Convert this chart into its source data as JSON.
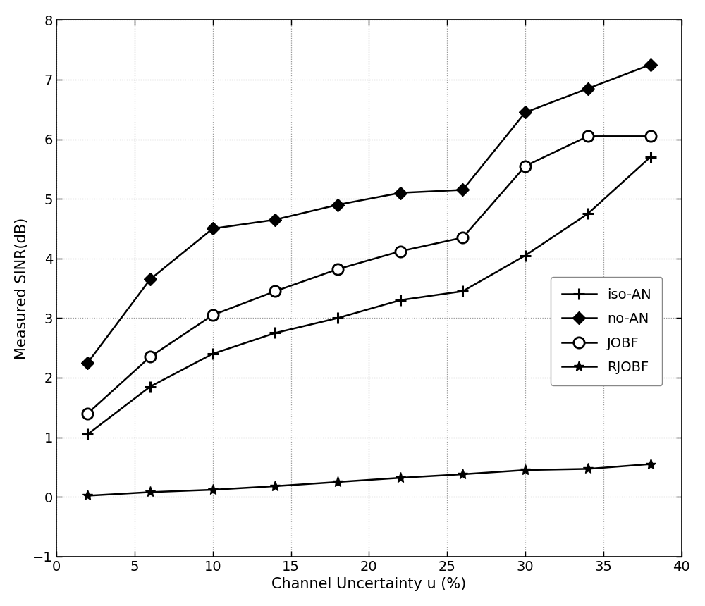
{
  "x": [
    2,
    6,
    10,
    14,
    18,
    22,
    26,
    30,
    34,
    38
  ],
  "iso_AN": [
    1.05,
    1.85,
    2.4,
    2.75,
    3.0,
    3.3,
    3.45,
    4.05,
    4.75,
    5.7
  ],
  "no_AN": [
    2.25,
    3.65,
    4.5,
    4.65,
    4.9,
    5.1,
    5.15,
    6.45,
    6.85,
    7.25
  ],
  "JOBF": [
    1.4,
    2.35,
    3.05,
    3.45,
    3.82,
    4.12,
    4.35,
    5.55,
    6.05,
    6.05
  ],
  "RJOBF": [
    0.02,
    0.08,
    0.12,
    0.18,
    0.25,
    0.32,
    0.38,
    0.45,
    0.47,
    0.55
  ],
  "xlabel": "Channel Uncertainty u (%)",
  "ylabel": "Measured SINR(dB)",
  "xlim": [
    0,
    40
  ],
  "ylim": [
    -1,
    8
  ],
  "xticks": [
    0,
    5,
    10,
    15,
    20,
    25,
    30,
    35,
    40
  ],
  "yticks": [
    -1,
    0,
    1,
    2,
    3,
    4,
    5,
    6,
    7,
    8
  ],
  "line_color": "#000000",
  "background_color": "#ffffff",
  "grid_color": "#999999",
  "legend_labels": [
    "iso-AN",
    "no-AN",
    "JOBF",
    "RJOBF"
  ],
  "label_fontsize": 15,
  "tick_fontsize": 14,
  "legend_fontsize": 14,
  "linewidth": 1.8,
  "marker_size_plus": 12,
  "marker_size_diamond": 9,
  "marker_size_circle": 11,
  "marker_size_x": 11
}
